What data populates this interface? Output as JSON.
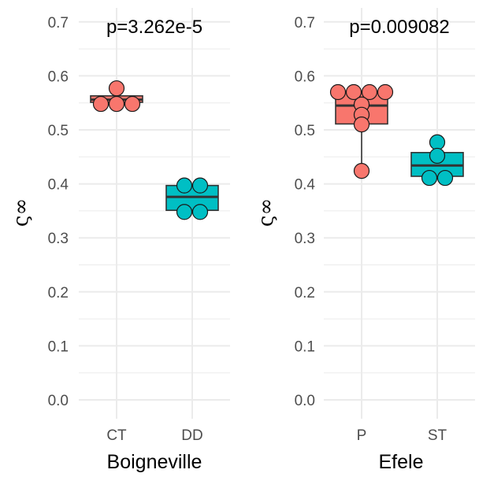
{
  "chart_data": [
    {
      "type": "box",
      "xlabel": "Boigneville",
      "ylabel": "ς∞",
      "annotation": "p=3.262e-5",
      "ylim": [
        -0.04,
        0.73
      ],
      "yticks": [
        "0.0",
        "0.1",
        "0.2",
        "0.3",
        "0.4",
        "0.5",
        "0.6",
        "0.7"
      ],
      "categories": [
        "CT",
        "DD"
      ],
      "groups": [
        {
          "name": "CT",
          "color": "#F8766D",
          "q1": 0.551,
          "median": 0.556,
          "q3": 0.563,
          "whisker_low": 0.551,
          "whisker_high": 0.563,
          "points": [
            0.577,
            0.548,
            0.548,
            0.548
          ]
        },
        {
          "name": "DD",
          "color": "#00BFC4",
          "q1": 0.351,
          "median": 0.376,
          "q3": 0.397,
          "whisker_low": 0.351,
          "whisker_high": 0.397,
          "points": [
            0.397,
            0.397,
            0.348,
            0.348
          ]
        }
      ]
    },
    {
      "type": "box",
      "xlabel": "Efele",
      "ylabel": "ς∞",
      "annotation": "p=0.009082",
      "ylim": [
        -0.04,
        0.73
      ],
      "yticks": [
        "0.0",
        "0.1",
        "0.2",
        "0.3",
        "0.4",
        "0.5",
        "0.6",
        "0.7"
      ],
      "categories": [
        "P",
        "ST"
      ],
      "groups": [
        {
          "name": "P",
          "color": "#F8766D",
          "q1": 0.511,
          "median": 0.545,
          "q3": 0.569,
          "whisker_low": 0.424,
          "whisker_high": 0.569,
          "points": [
            0.57,
            0.57,
            0.57,
            0.57,
            0.547,
            0.528,
            0.51,
            0.424
          ]
        },
        {
          "name": "ST",
          "color": "#00BFC4",
          "q1": 0.414,
          "median": 0.434,
          "q3": 0.458,
          "whisker_low": 0.414,
          "whisker_high": 0.458,
          "points": [
            0.477,
            0.452,
            0.411,
            0.411
          ]
        }
      ]
    }
  ]
}
